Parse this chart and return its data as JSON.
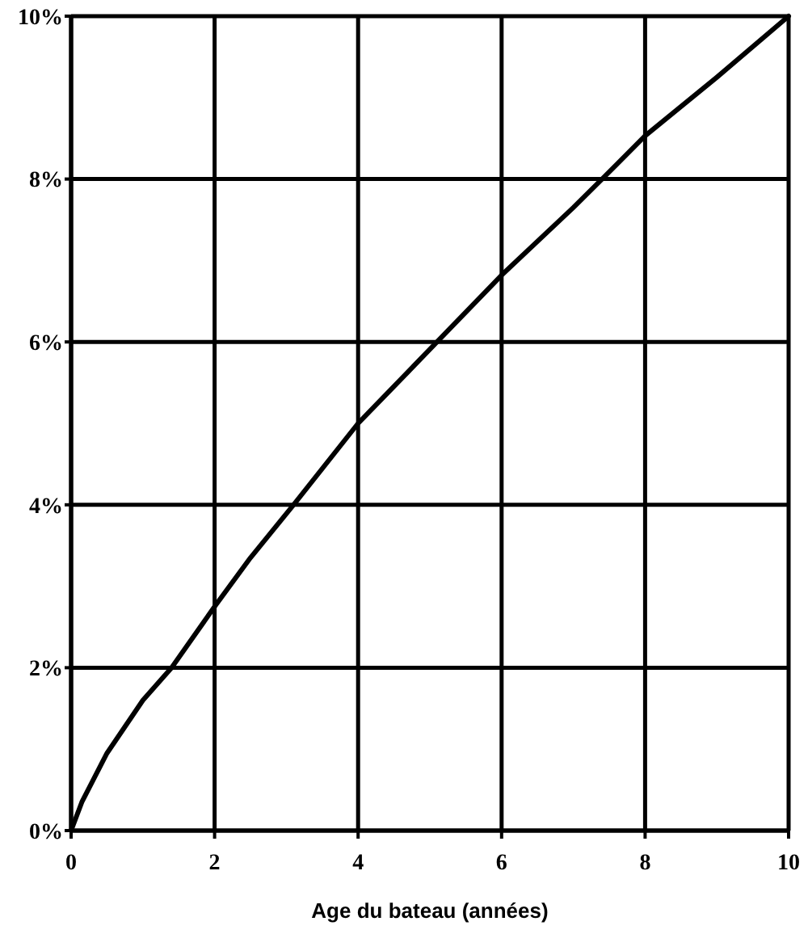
{
  "chart_data": {
    "type": "line",
    "xlabel": "Age du bateau (années)",
    "x": [
      0,
      0.15,
      0.5,
      1,
      1.4,
      2,
      2.5,
      3.1,
      4,
      5.1,
      6,
      7,
      7.4,
      8,
      9,
      10
    ],
    "series": [
      {
        "color": "#000000",
        "values": [
          0,
          0.35,
          0.95,
          1.6,
          2,
          2.75,
          3.35,
          4,
          5,
          6,
          6.82,
          7.65,
          8,
          8.53,
          9.25,
          10
        ]
      }
    ],
    "xlim": [
      0,
      10
    ],
    "xticks": [
      0,
      2,
      4,
      6,
      8,
      10
    ],
    "ylim": [
      0,
      10
    ],
    "yticks": [
      {
        "value": 0,
        "label": "0%"
      },
      {
        "value": 2,
        "label": "2%"
      },
      {
        "value": 4,
        "label": "4%"
      },
      {
        "value": 6,
        "label": "6%"
      },
      {
        "value": 8,
        "label": "8%"
      },
      {
        "value": 10,
        "label": "10%"
      }
    ],
    "grid": true,
    "marker": "none",
    "line_style": "solid"
  }
}
